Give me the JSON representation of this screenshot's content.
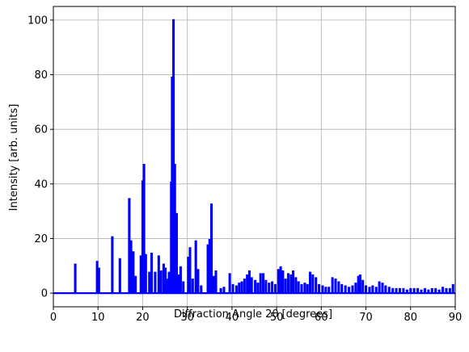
{
  "chart_data": {
    "type": "line",
    "title": "",
    "xlabel": "Diffraction Angle 2θ [degrees]",
    "ylabel": "Intensity [arb. units]",
    "xlim": [
      0,
      90
    ],
    "ylim": [
      -5,
      105
    ],
    "xticks": [
      0,
      10,
      20,
      30,
      40,
      50,
      60,
      70,
      80,
      90
    ],
    "yticks": [
      0,
      20,
      40,
      60,
      80,
      100
    ],
    "grid": true,
    "line_color": "#0000ff",
    "grid_color": "#b0b0b0",
    "series": [
      {
        "peaks": [
          [
            4.9,
            10.5
          ],
          [
            9.8,
            11.5
          ],
          [
            10.2,
            9.0
          ],
          [
            13.2,
            20.5
          ],
          [
            14.9,
            12.5
          ],
          [
            17.0,
            34.5
          ],
          [
            17.4,
            19.0
          ],
          [
            17.9,
            15.0
          ],
          [
            18.4,
            6.0
          ],
          [
            19.6,
            13.5
          ],
          [
            20.0,
            41.0
          ],
          [
            20.3,
            47.0
          ],
          [
            20.7,
            14.0
          ],
          [
            21.5,
            7.5
          ],
          [
            22.0,
            14.5
          ],
          [
            22.8,
            7.5
          ],
          [
            23.6,
            13.5
          ],
          [
            24.1,
            8.0
          ],
          [
            24.7,
            10.5
          ],
          [
            25.1,
            9.0
          ],
          [
            25.5,
            5.0
          ],
          [
            25.9,
            7.5
          ],
          [
            26.4,
            40.5
          ],
          [
            26.6,
            79.0
          ],
          [
            26.9,
            100.0
          ],
          [
            27.2,
            47.0
          ],
          [
            27.6,
            29.0
          ],
          [
            28.1,
            6.5
          ],
          [
            28.5,
            9.5
          ],
          [
            29.1,
            4.0
          ],
          [
            30.2,
            13.0
          ],
          [
            30.6,
            16.5
          ],
          [
            31.2,
            5.0
          ],
          [
            31.9,
            19.0
          ],
          [
            32.4,
            8.5
          ],
          [
            33.1,
            2.5
          ],
          [
            34.6,
            17.5
          ],
          [
            35.0,
            19.5
          ],
          [
            35.4,
            32.5
          ],
          [
            35.9,
            6.0
          ],
          [
            36.4,
            8.0
          ],
          [
            37.5,
            1.5
          ],
          [
            38.2,
            2.0
          ],
          [
            39.5,
            7.0
          ],
          [
            40.2,
            3.0
          ],
          [
            41.0,
            2.5
          ],
          [
            41.6,
            3.5
          ],
          [
            42.2,
            4.0
          ],
          [
            42.8,
            5.0
          ],
          [
            43.4,
            6.5
          ],
          [
            43.9,
            8.0
          ],
          [
            44.4,
            5.5
          ],
          [
            45.2,
            4.5
          ],
          [
            45.8,
            3.5
          ],
          [
            46.4,
            7.0
          ],
          [
            47.0,
            7.0
          ],
          [
            47.6,
            4.5
          ],
          [
            48.3,
            3.5
          ],
          [
            49.0,
            4.0
          ],
          [
            49.7,
            3.0
          ],
          [
            50.4,
            8.5
          ],
          [
            50.9,
            9.5
          ],
          [
            51.4,
            8.0
          ],
          [
            52.0,
            5.0
          ],
          [
            52.6,
            7.0
          ],
          [
            53.2,
            6.5
          ],
          [
            53.7,
            8.0
          ],
          [
            54.3,
            5.5
          ],
          [
            54.9,
            4.0
          ],
          [
            55.6,
            3.0
          ],
          [
            56.3,
            3.5
          ],
          [
            56.9,
            3.0
          ],
          [
            57.5,
            7.5
          ],
          [
            58.1,
            6.5
          ],
          [
            58.8,
            5.5
          ],
          [
            59.5,
            3.0
          ],
          [
            60.3,
            2.5
          ],
          [
            61.0,
            2.0
          ],
          [
            61.7,
            2.0
          ],
          [
            62.5,
            5.5
          ],
          [
            63.2,
            5.0
          ],
          [
            63.9,
            4.0
          ],
          [
            64.6,
            3.0
          ],
          [
            65.4,
            2.5
          ],
          [
            66.2,
            2.0
          ],
          [
            67.0,
            2.5
          ],
          [
            67.7,
            3.5
          ],
          [
            68.3,
            6.0
          ],
          [
            68.7,
            6.5
          ],
          [
            69.3,
            4.5
          ],
          [
            70.0,
            2.5
          ],
          [
            70.8,
            2.0
          ],
          [
            71.5,
            2.5
          ],
          [
            72.3,
            2.0
          ],
          [
            73.0,
            4.0
          ],
          [
            73.7,
            3.5
          ],
          [
            74.4,
            2.5
          ],
          [
            75.2,
            2.0
          ],
          [
            76.0,
            1.5
          ],
          [
            76.8,
            1.5
          ],
          [
            77.6,
            1.5
          ],
          [
            78.4,
            1.5
          ],
          [
            79.2,
            1.0
          ],
          [
            80.0,
            1.5
          ],
          [
            80.8,
            1.5
          ],
          [
            81.6,
            1.5
          ],
          [
            82.4,
            1.0
          ],
          [
            83.2,
            1.5
          ],
          [
            84.0,
            1.0
          ],
          [
            84.8,
            1.5
          ],
          [
            85.6,
            1.5
          ],
          [
            86.4,
            1.0
          ],
          [
            87.2,
            2.0
          ],
          [
            88.0,
            1.5
          ],
          [
            88.8,
            1.5
          ],
          [
            89.5,
            3.0
          ]
        ]
      }
    ]
  }
}
